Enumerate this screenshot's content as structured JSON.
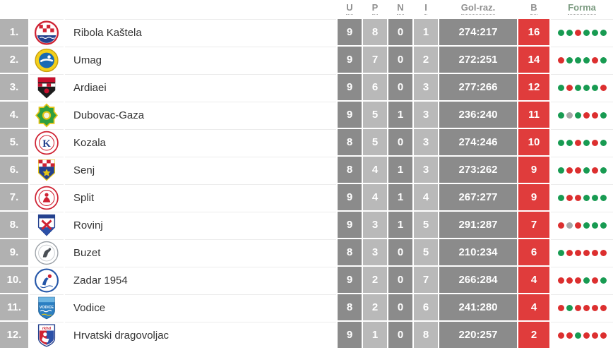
{
  "table": {
    "headers": [
      {
        "key": "u",
        "label": "U"
      },
      {
        "key": "p",
        "label": "P"
      },
      {
        "key": "n",
        "label": "N"
      },
      {
        "key": "i",
        "label": "I"
      },
      {
        "key": "gol",
        "label": "Gol-raz."
      },
      {
        "key": "b",
        "label": "B"
      },
      {
        "key": "forma",
        "label": "Forma"
      }
    ],
    "colors": {
      "points_bg": "#e03c3c",
      "dark_cell": "#8b8b8b",
      "light_cell": "#b9b9b9",
      "position_cell": "#b1b1b1",
      "form_win": "#189b52",
      "form_loss": "#dc2f2f",
      "form_draw": "#a6a6a6",
      "header_text": "#8f8f8f"
    },
    "rows": [
      {
        "pos": "1.",
        "team": "Ribola Kaštela",
        "logo": "ribola-kastela-logo",
        "u": "9",
        "p": "8",
        "n": "0",
        "i": "1",
        "gol": "274:217",
        "b": "16",
        "forma": [
          "w",
          "w",
          "l",
          "w",
          "w",
          "w"
        ]
      },
      {
        "pos": "2.",
        "team": "Umag",
        "logo": "umag-logo",
        "u": "9",
        "p": "7",
        "n": "0",
        "i": "2",
        "gol": "272:251",
        "b": "14",
        "forma": [
          "l",
          "w",
          "w",
          "w",
          "l",
          "w"
        ]
      },
      {
        "pos": "3.",
        "team": "Ardiaei",
        "logo": "ardiaei-logo",
        "u": "9",
        "p": "6",
        "n": "0",
        "i": "3",
        "gol": "277:266",
        "b": "12",
        "forma": [
          "w",
          "l",
          "w",
          "w",
          "w",
          "l"
        ]
      },
      {
        "pos": "4.",
        "team": "Dubovac-Gaza",
        "logo": "dubovac-gaza-logo",
        "u": "9",
        "p": "5",
        "n": "1",
        "i": "3",
        "gol": "236:240",
        "b": "11",
        "forma": [
          "w",
          "d",
          "w",
          "l",
          "l",
          "w"
        ]
      },
      {
        "pos": "5.",
        "team": "Kozala",
        "logo": "kozala-logo",
        "u": "8",
        "p": "5",
        "n": "0",
        "i": "3",
        "gol": "274:246",
        "b": "10",
        "forma": [
          "w",
          "w",
          "l",
          "w",
          "l",
          "w"
        ]
      },
      {
        "pos": "6.",
        "team": "Senj",
        "logo": "senj-logo",
        "u": "8",
        "p": "4",
        "n": "1",
        "i": "3",
        "gol": "273:262",
        "b": "9",
        "forma": [
          "w",
          "l",
          "l",
          "w",
          "l",
          "w"
        ]
      },
      {
        "pos": "7.",
        "team": "Split",
        "logo": "split-logo",
        "u": "9",
        "p": "4",
        "n": "1",
        "i": "4",
        "gol": "267:277",
        "b": "9",
        "forma": [
          "w",
          "l",
          "l",
          "w",
          "w",
          "w"
        ]
      },
      {
        "pos": "8.",
        "team": "Rovinj",
        "logo": "rovinj-logo",
        "u": "9",
        "p": "3",
        "n": "1",
        "i": "5",
        "gol": "291:287",
        "b": "7",
        "forma": [
          "l",
          "d",
          "l",
          "w",
          "w",
          "w"
        ]
      },
      {
        "pos": "9.",
        "team": "Buzet",
        "logo": "buzet-logo",
        "u": "8",
        "p": "3",
        "n": "0",
        "i": "5",
        "gol": "210:234",
        "b": "6",
        "forma": [
          "w",
          "l",
          "l",
          "l",
          "l",
          "l"
        ]
      },
      {
        "pos": "10.",
        "team": "Zadar 1954",
        "logo": "zadar-1954-logo",
        "u": "9",
        "p": "2",
        "n": "0",
        "i": "7",
        "gol": "266:284",
        "b": "4",
        "forma": [
          "l",
          "l",
          "l",
          "w",
          "l",
          "w"
        ]
      },
      {
        "pos": "11.",
        "team": "Vodice",
        "logo": "vodice-logo",
        "logo_text": "VODICE",
        "u": "8",
        "p": "2",
        "n": "0",
        "i": "6",
        "gol": "241:280",
        "b": "4",
        "forma": [
          "l",
          "w",
          "l",
          "l",
          "l",
          "l"
        ]
      },
      {
        "pos": "12.",
        "team": "Hrvatski dragovoljac",
        "logo": "hrvatski-dragovoljac-logo",
        "logo_text": "rkhd",
        "u": "9",
        "p": "1",
        "n": "0",
        "i": "8",
        "gol": "220:257",
        "b": "2",
        "forma": [
          "l",
          "l",
          "w",
          "l",
          "l",
          "l"
        ]
      }
    ]
  }
}
